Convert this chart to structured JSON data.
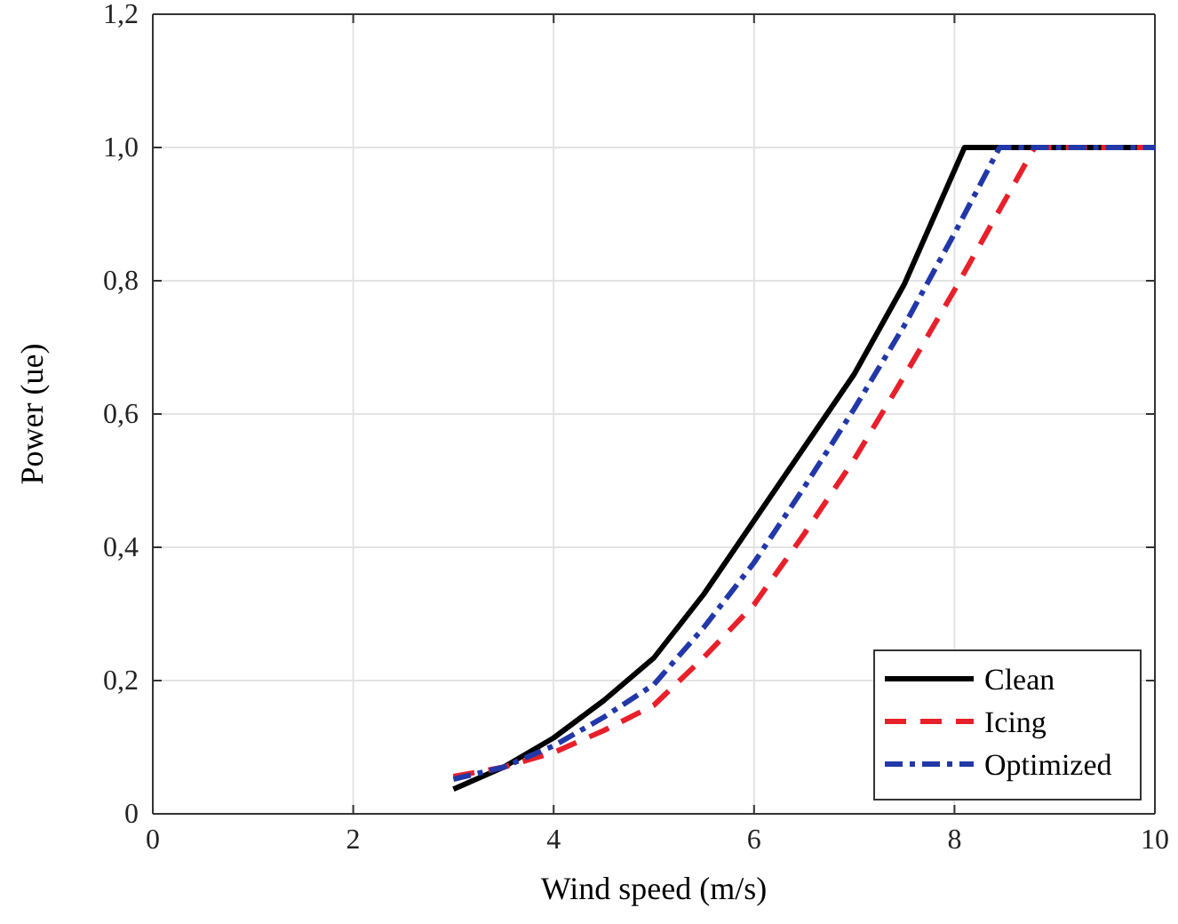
{
  "chart_data": {
    "type": "line",
    "xlabel": "Wind speed (m/s)",
    "ylabel": "Power (ue)",
    "xlim": [
      0,
      10
    ],
    "xticks": [
      0,
      2,
      4,
      6,
      8,
      10
    ],
    "ylim": [
      0,
      1.2
    ],
    "yticks": [
      0,
      {
        "value": 0.2,
        "label": "0,2"
      },
      {
        "value": 0.4,
        "label": "0,4"
      },
      {
        "value": 0.6,
        "label": "0,6"
      },
      {
        "value": 0.8,
        "label": "0,8"
      },
      {
        "value": 1.0,
        "label": "1,0"
      },
      {
        "value": 1.2,
        "label": "1,2"
      }
    ],
    "grid": true,
    "legend": "bottom right",
    "series": [
      {
        "name": "Clean",
        "color": "#000000",
        "line_style": "solid",
        "x": [
          3,
          3.5,
          4,
          4.5,
          5,
          5.5,
          6,
          6.5,
          7,
          7.5,
          8.1,
          10
        ],
        "values": [
          0.037,
          0.07,
          0.114,
          0.17,
          0.234,
          0.33,
          0.44,
          0.55,
          0.66,
          0.795,
          1.0,
          1.0
        ]
      },
      {
        "name": "Icing",
        "color": "#e8202a",
        "line_style": "dashed",
        "x": [
          3,
          3.5,
          4,
          4.5,
          5,
          5.5,
          6,
          6.5,
          7,
          7.5,
          8,
          8.8,
          10
        ],
        "values": [
          0.056,
          0.07,
          0.092,
          0.125,
          0.163,
          0.235,
          0.314,
          0.42,
          0.532,
          0.657,
          0.786,
          1.0,
          1.0
        ]
      },
      {
        "name": "Optimized",
        "color": "#2238a8",
        "line_style": "dashdot",
        "x": [
          3,
          3.5,
          4,
          4.5,
          5,
          5.5,
          6,
          6.5,
          7,
          7.5,
          8,
          8.45,
          10
        ],
        "values": [
          0.052,
          0.07,
          0.102,
          0.145,
          0.194,
          0.28,
          0.377,
          0.49,
          0.608,
          0.733,
          0.871,
          1.0,
          1.0
        ]
      }
    ]
  }
}
